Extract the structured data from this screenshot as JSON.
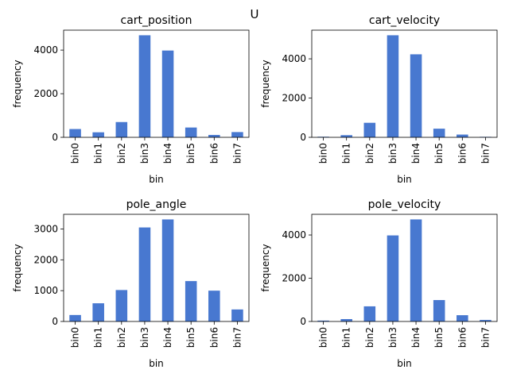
{
  "suptitle": "U",
  "bar_color": "#4878d0",
  "chart_data": [
    {
      "type": "bar",
      "title": "cart_position",
      "xlabel": "bin",
      "ylabel": "frequency",
      "categories": [
        "bin0",
        "bin1",
        "bin2",
        "bin3",
        "bin4",
        "bin5",
        "bin6",
        "bin7"
      ],
      "values": [
        380,
        230,
        700,
        4680,
        3980,
        450,
        110,
        240
      ],
      "ylim": [
        0,
        4914
      ],
      "yticks": [
        0,
        2000,
        4000
      ]
    },
    {
      "type": "bar",
      "title": "cart_velocity",
      "xlabel": "bin",
      "ylabel": "frequency",
      "categories": [
        "bin0",
        "bin1",
        "bin2",
        "bin3",
        "bin4",
        "bin5",
        "bin6",
        "bin7"
      ],
      "values": [
        30,
        110,
        740,
        5200,
        4230,
        440,
        140,
        25
      ],
      "ylim": [
        0,
        5460
      ],
      "yticks": [
        0,
        2000,
        4000
      ]
    },
    {
      "type": "bar",
      "title": "pole_angle",
      "xlabel": "bin",
      "ylabel": "frequency",
      "categories": [
        "bin0",
        "bin1",
        "bin2",
        "bin3",
        "bin4",
        "bin5",
        "bin6",
        "bin7"
      ],
      "values": [
        210,
        590,
        1020,
        3050,
        3310,
        1310,
        1000,
        390
      ],
      "ylim": [
        0,
        3476
      ],
      "yticks": [
        0,
        1000,
        2000,
        3000
      ]
    },
    {
      "type": "bar",
      "title": "pole_velocity",
      "xlabel": "bin",
      "ylabel": "frequency",
      "categories": [
        "bin0",
        "bin1",
        "bin2",
        "bin3",
        "bin4",
        "bin5",
        "bin6",
        "bin7"
      ],
      "values": [
        40,
        110,
        700,
        3980,
        4720,
        990,
        290,
        70
      ],
      "ylim": [
        0,
        4956
      ],
      "yticks": [
        0,
        2000,
        4000
      ]
    }
  ]
}
